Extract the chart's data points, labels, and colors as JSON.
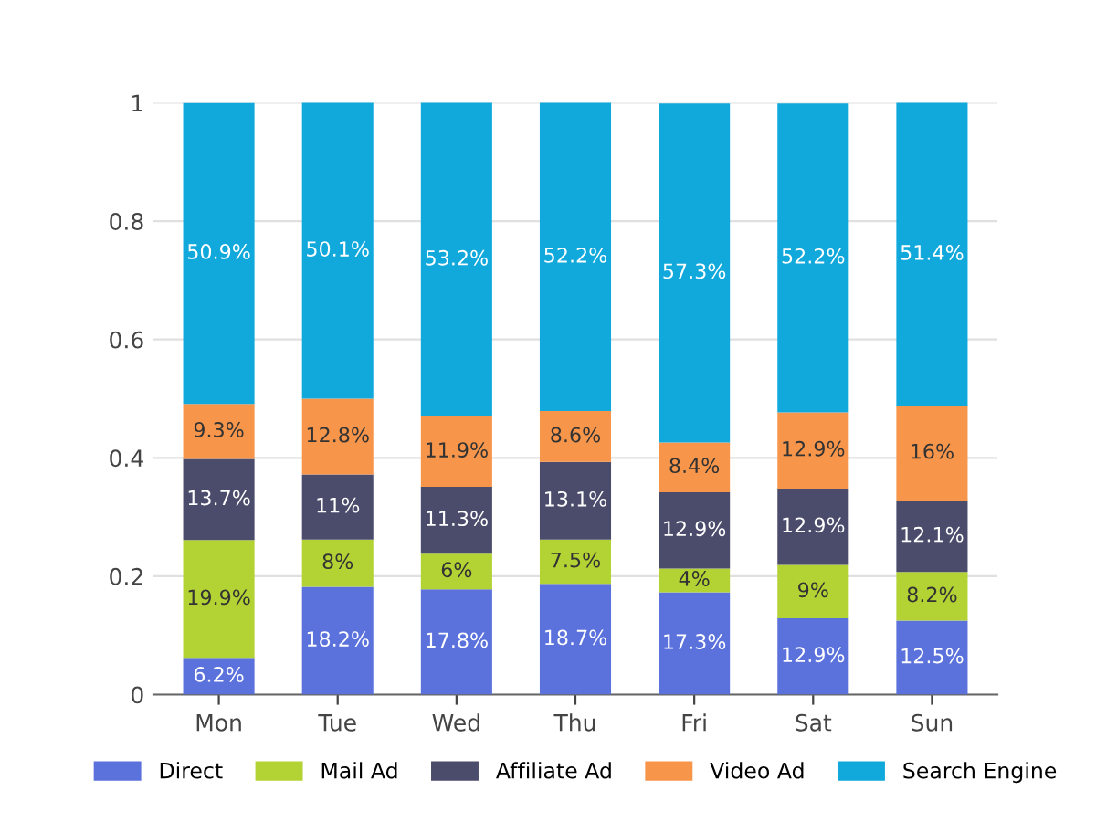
{
  "chart_data": {
    "type": "bar",
    "stacked": true,
    "categories": [
      "Mon",
      "Tue",
      "Wed",
      "Thu",
      "Fri",
      "Sat",
      "Sun"
    ],
    "ylim": [
      0,
      1
    ],
    "yticks": [
      0,
      0.2,
      0.4,
      0.6,
      0.8,
      1
    ],
    "grid": "y",
    "legend": "bottom",
    "series": [
      {
        "name": "Direct",
        "color": "#5b72dc",
        "values": [
          0.062,
          0.182,
          0.178,
          0.187,
          0.173,
          0.129,
          0.125
        ],
        "value_labels": [
          "6.2%",
          "18.2%",
          "17.8%",
          "18.7%",
          "17.3%",
          "12.9%",
          "12.5%"
        ]
      },
      {
        "name": "Mail Ad",
        "color": "#b3d234",
        "values": [
          0.199,
          0.08,
          0.06,
          0.075,
          0.04,
          0.09,
          0.082
        ],
        "value_labels": [
          "19.9%",
          "8%",
          "6%",
          "7.5%",
          "4%",
          "9%",
          "8.2%"
        ]
      },
      {
        "name": "Affiliate Ad",
        "color": "#4b4c6b",
        "values": [
          0.137,
          0.11,
          0.113,
          0.131,
          0.129,
          0.129,
          0.121
        ],
        "value_labels": [
          "13.7%",
          "11%",
          "11.3%",
          "13.1%",
          "12.9%",
          "12.9%",
          "12.1%"
        ]
      },
      {
        "name": "Video Ad",
        "color": "#f7964b",
        "values": [
          0.093,
          0.128,
          0.119,
          0.086,
          0.084,
          0.129,
          0.16
        ],
        "value_labels": [
          "9.3%",
          "12.8%",
          "11.9%",
          "8.6%",
          "8.4%",
          "12.9%",
          "16%"
        ]
      },
      {
        "name": "Search Engine",
        "color": "#11a9dc",
        "values": [
          0.509,
          0.501,
          0.532,
          0.522,
          0.573,
          0.522,
          0.514
        ],
        "value_labels": [
          "50.9%",
          "50.1%",
          "53.2%",
          "52.2%",
          "57.3%",
          "52.2%",
          "51.4%"
        ]
      }
    ]
  }
}
